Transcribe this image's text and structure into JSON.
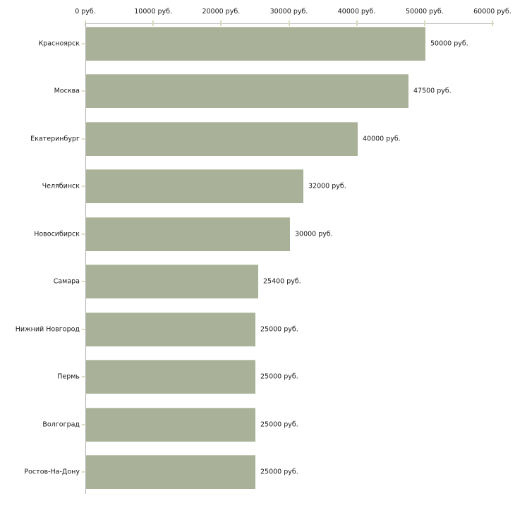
{
  "chart_data": {
    "type": "bar",
    "orientation": "horizontal",
    "categories": [
      "Красноярск",
      "Москва",
      "Екатеринбург",
      "Челябинск",
      "Новосибирск",
      "Самара",
      "Нижний Новгород",
      "Пермь",
      "Волгоград",
      "Ростов-На-Дону"
    ],
    "values": [
      50000,
      47500,
      40000,
      32000,
      30000,
      25400,
      25000,
      25000,
      25000,
      25000
    ],
    "value_labels": [
      "50000 руб.",
      "47500 руб.",
      "40000 руб.",
      "32000 руб.",
      "30000 руб.",
      "25400 руб.",
      "25000 руб.",
      "25000 руб.",
      "25000 руб.",
      "25000 руб."
    ],
    "xlim": [
      0,
      60000
    ],
    "x_ticks": [
      0,
      10000,
      20000,
      30000,
      40000,
      50000,
      60000
    ],
    "x_tick_labels": [
      "0 руб.",
      "10000 руб.",
      "20000 руб.",
      "30000 руб.",
      "40000 руб.",
      "50000 руб.",
      "60000 руб."
    ],
    "x_axis_position": "top",
    "grid": false,
    "legend": false,
    "colors": {
      "bar_fill": "#a9b298",
      "bar_top_edge": "#c2c9b2",
      "x_axis_line": "#c3c3c3",
      "y_axis_line": "#b3b3b3",
      "tick_mark": "#d9dabc",
      "label_text": "#1a1a1a",
      "background": "#ffffff"
    }
  }
}
